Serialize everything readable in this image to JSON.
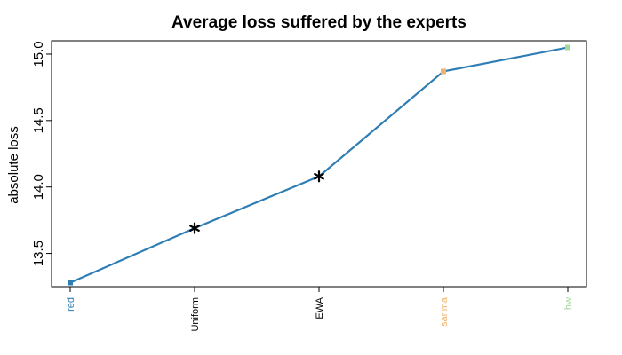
{
  "chart_data": {
    "type": "line",
    "title": "Average loss suffered by the experts",
    "xlabel": "",
    "ylabel": "absolute loss",
    "ylim": [
      13.25,
      15.1
    ],
    "yticks": [
      "13.5",
      "14.0",
      "14.5",
      "15.0"
    ],
    "categories": [
      "red",
      "Uniform",
      "EWA",
      "sarima",
      "hw"
    ],
    "values": [
      13.28,
      13.69,
      14.08,
      14.87,
      15.05
    ],
    "category_colors": [
      "#2F7DB5",
      "#000000",
      "#000000",
      "#F2B26B",
      "#A5D99B"
    ],
    "markers": [
      "square",
      "asterisk",
      "asterisk",
      "square",
      "square"
    ],
    "line_color": "#2F7DB5",
    "grid": false,
    "legend": "none"
  }
}
